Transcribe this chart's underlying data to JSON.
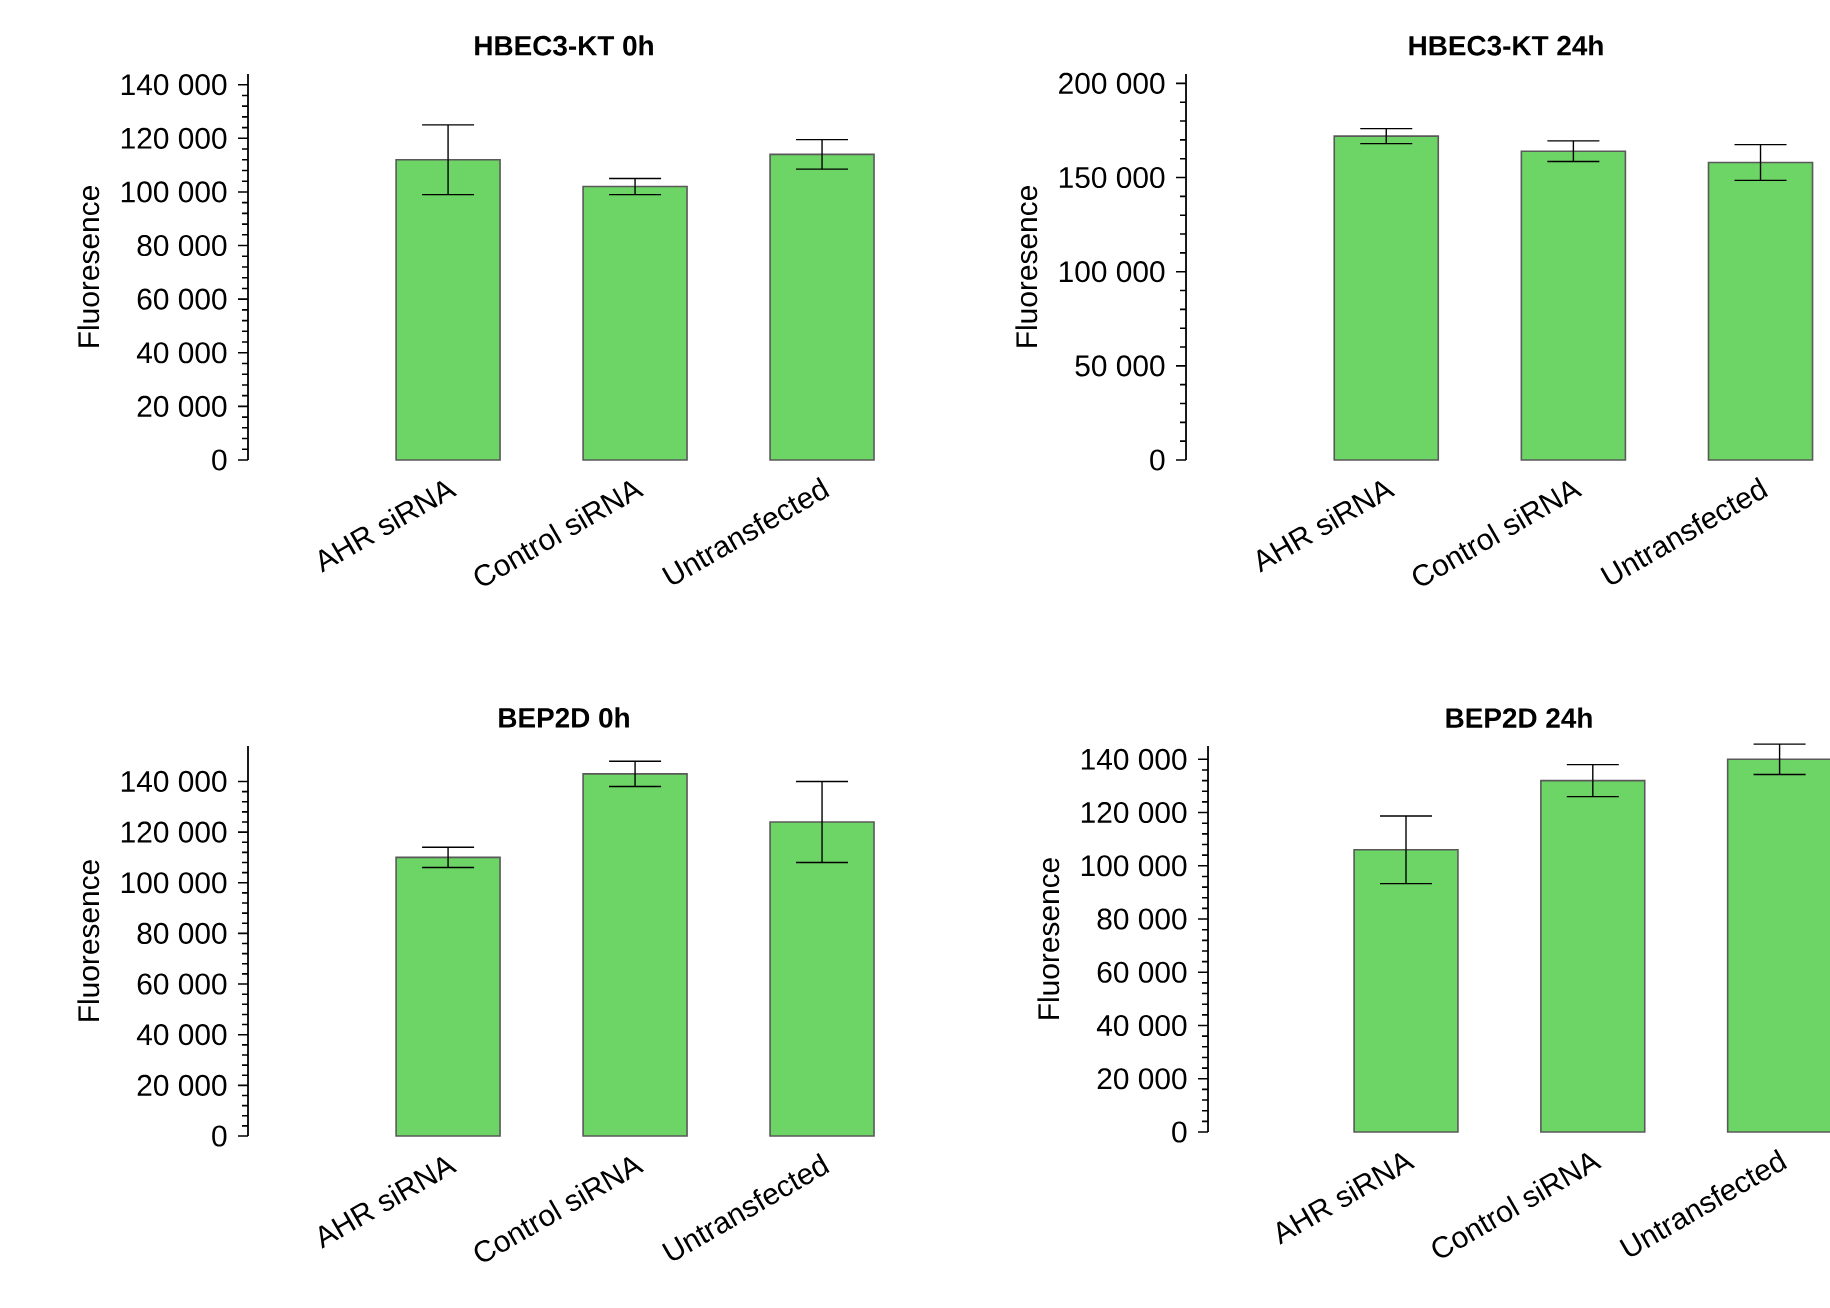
{
  "chart_data": [
    {
      "type": "bar",
      "title": "HBEC3-KT   0h",
      "ylabel": "Fluoresence",
      "categories": [
        "AHR siRNA",
        "Control siRNA",
        "Untransfected"
      ],
      "values": [
        112000,
        102000,
        114000
      ],
      "errors": [
        13000,
        3000,
        5500
      ],
      "color": "#6dd466",
      "ylim": [
        0,
        144000
      ],
      "yticks": [
        {
          "value": 0,
          "label": "0"
        },
        {
          "value": 20000,
          "label": "20 000"
        },
        {
          "value": 40000,
          "label": "40 000"
        },
        {
          "value": 60000,
          "label": "60 000"
        },
        {
          "value": 80000,
          "label": "80 000"
        },
        {
          "value": 100000,
          "label": "100 000"
        },
        {
          "value": 120000,
          "label": "120 000"
        },
        {
          "value": 140000,
          "label": "140 000"
        }
      ]
    },
    {
      "type": "bar",
      "title": "HBEC3-KT   24h",
      "ylabel": "Fluoresence",
      "categories": [
        "AHR siRNA",
        "Control siRNA",
        "Untransfected"
      ],
      "values": [
        172000,
        164000,
        158000
      ],
      "errors": [
        4000,
        5500,
        9500
      ],
      "color": "#6dd466",
      "ylim": [
        0,
        205000
      ],
      "yticks": [
        {
          "value": 0,
          "label": "0"
        },
        {
          "value": 50000,
          "label": "50 000"
        },
        {
          "value": 100000,
          "label": "100 000"
        },
        {
          "value": 150000,
          "label": "150 000"
        },
        {
          "value": 200000,
          "label": "200 000"
        }
      ]
    },
    {
      "type": "bar",
      "title": "BEP2D   0h",
      "ylabel": "Fluoresence",
      "categories": [
        "AHR siRNA",
        "Control siRNA",
        "Untransfected"
      ],
      "values": [
        110000,
        143000,
        124000
      ],
      "errors": [
        4000,
        5000,
        16000
      ],
      "color": "#6dd466",
      "ylim": [
        0,
        154000
      ],
      "yticks": [
        {
          "value": 0,
          "label": "0"
        },
        {
          "value": 20000,
          "label": "20 000"
        },
        {
          "value": 40000,
          "label": "40 000"
        },
        {
          "value": 60000,
          "label": "60 000"
        },
        {
          "value": 80000,
          "label": "80 000"
        },
        {
          "value": 100000,
          "label": "100 000"
        },
        {
          "value": 120000,
          "label": "120 000"
        },
        {
          "value": 140000,
          "label": "140 000"
        }
      ]
    },
    {
      "type": "bar",
      "title": "BEP2D   24h",
      "ylabel": "Fluoresence",
      "categories": [
        "AHR siRNA",
        "Control siRNA",
        "Untransfected"
      ],
      "values": [
        106000,
        132000,
        140000
      ],
      "errors": [
        12700,
        6000,
        5700
      ],
      "color": "#6dd466",
      "ylim": [
        0,
        145000
      ],
      "yticks": [
        {
          "value": 0,
          "label": "0"
        },
        {
          "value": 20000,
          "label": "20 000"
        },
        {
          "value": 40000,
          "label": "40 000"
        },
        {
          "value": 60000,
          "label": "60 000"
        },
        {
          "value": 80000,
          "label": "80 000"
        },
        {
          "value": 100000,
          "label": "100 000"
        },
        {
          "value": 120000,
          "label": "120 000"
        },
        {
          "value": 140000,
          "label": "140 000"
        }
      ]
    }
  ]
}
